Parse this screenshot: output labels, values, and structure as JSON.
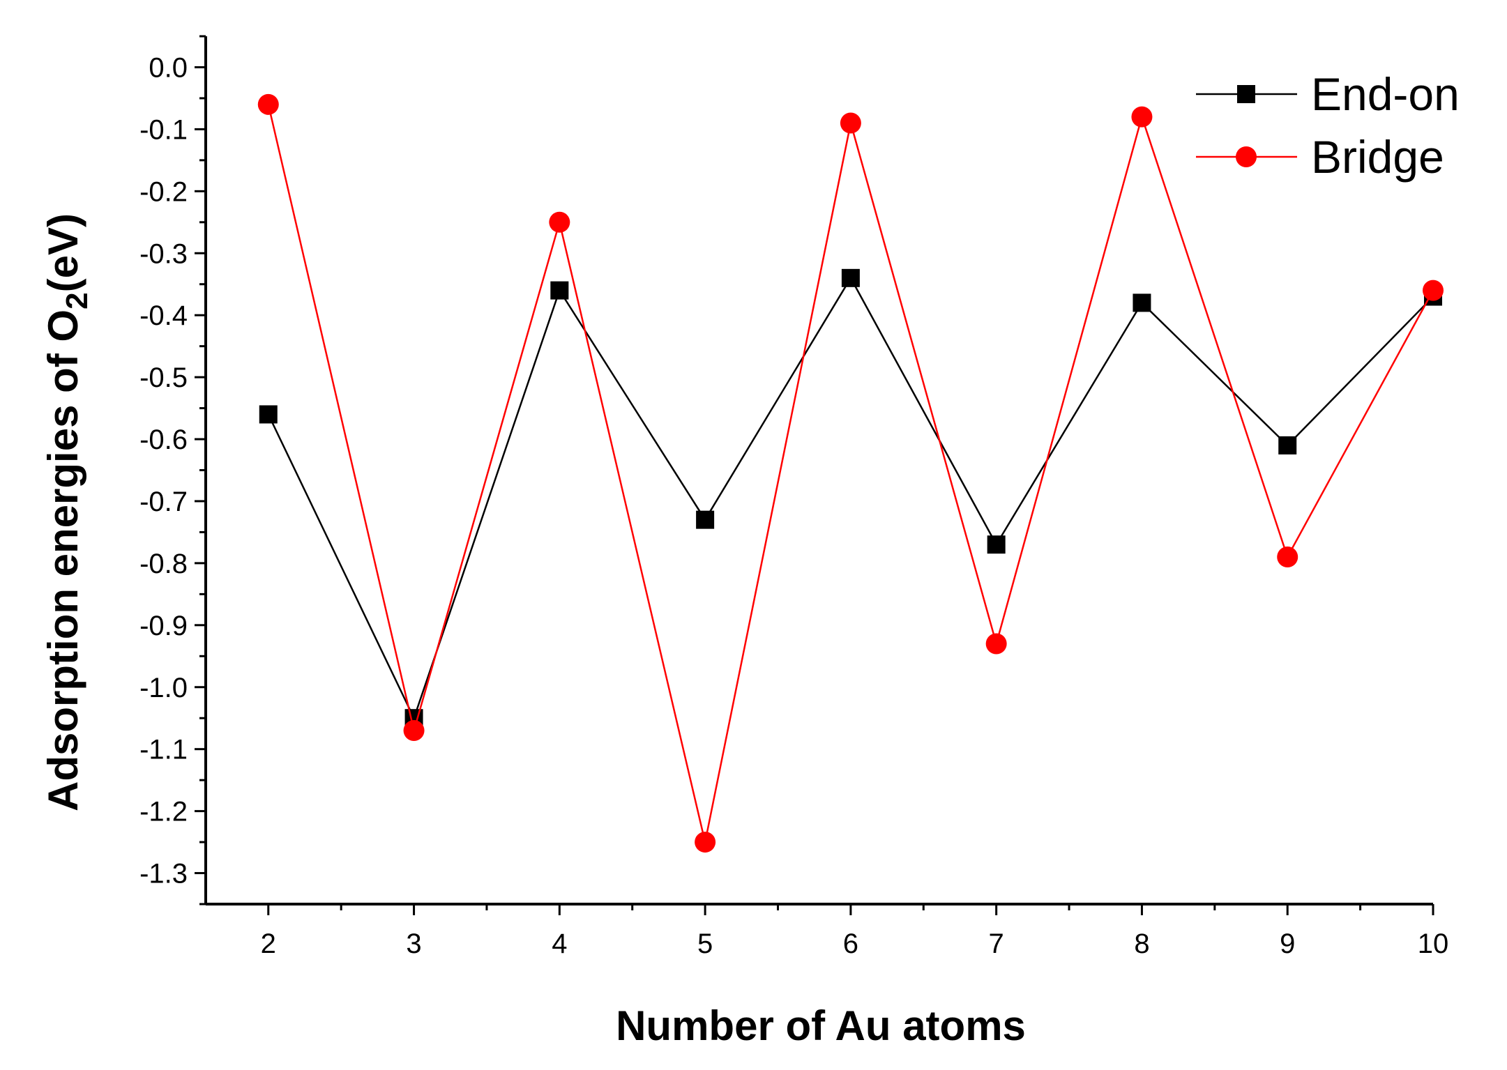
{
  "chart_data": {
    "type": "line",
    "title": "",
    "xlabel": "Number of Au atoms",
    "ylabel_main": "Adsorption energies of O",
    "ylabel_sub": "2",
    "ylabel_tail": "(eV)",
    "x": [
      2,
      3,
      4,
      5,
      6,
      7,
      8,
      9,
      10
    ],
    "xlim": [
      1.57,
      10.0
    ],
    "ylim": [
      -1.35,
      0.05
    ],
    "xticks": [
      2,
      3,
      4,
      5,
      6,
      7,
      8,
      9,
      10
    ],
    "xtick_labels": [
      "2",
      "3",
      "4",
      "5",
      "6",
      "7",
      "8",
      "9",
      "10"
    ],
    "yticks": [
      0.0,
      -0.1,
      -0.2,
      -0.3,
      -0.4,
      -0.5,
      -0.6,
      -0.7,
      -0.8,
      -0.9,
      -1.0,
      -1.1,
      -1.2,
      -1.3
    ],
    "ytick_labels": [
      "0.0",
      "-0.1",
      "-0.2",
      "-0.3",
      "-0.4",
      "-0.5",
      "-0.6",
      "-0.7",
      "-0.8",
      "-0.9",
      "-1.0",
      "-1.1",
      "-1.2",
      "-1.3"
    ],
    "legend_position": "top-right",
    "grid": false,
    "series": [
      {
        "name": "End-on",
        "marker": "square",
        "color": "#000000",
        "values": [
          -0.56,
          -1.05,
          -0.36,
          -0.73,
          -0.34,
          -0.77,
          -0.38,
          -0.61,
          -0.37
        ]
      },
      {
        "name": "Bridge",
        "marker": "circle",
        "color": "#ff0000",
        "values": [
          -0.06,
          -1.07,
          -0.25,
          -1.25,
          -0.09,
          -0.93,
          -0.08,
          -0.79,
          -0.36
        ]
      }
    ]
  }
}
